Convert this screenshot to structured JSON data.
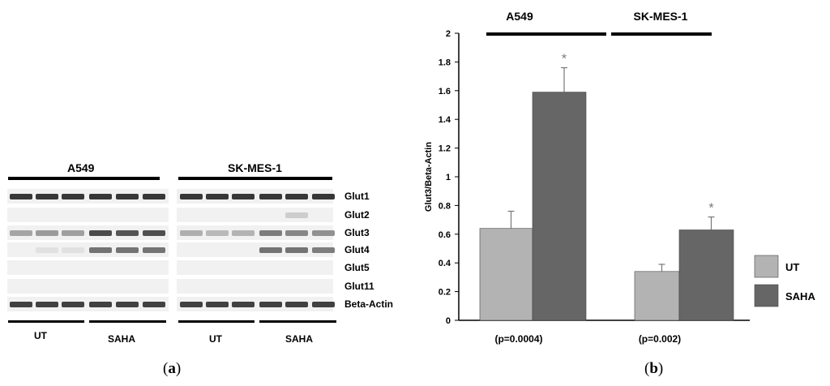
{
  "panel_a": {
    "caption": {
      "open": "(",
      "letter": "a",
      "close": ")"
    },
    "cell_lines": [
      "A549",
      "SK-MES-1"
    ],
    "genes": [
      "Glut1",
      "Glut2",
      "Glut3",
      "Glut4",
      "Glut5",
      "Glut11",
      "Beta-Actin"
    ],
    "groups": [
      "UT",
      "SAHA",
      "UT",
      "SAHA"
    ],
    "band_intensity": {
      "Glut1": [
        0.9,
        0.9,
        0.9,
        0.9,
        0.9,
        0.9,
        0.9,
        0.9,
        0.9,
        0.9,
        0.9,
        0.9
      ],
      "Glut2": [
        0,
        0,
        0,
        0,
        0,
        0,
        0,
        0,
        0,
        0,
        0.15,
        0
      ],
      "Glut3": [
        0.35,
        0.4,
        0.38,
        0.8,
        0.75,
        0.78,
        0.3,
        0.25,
        0.28,
        0.55,
        0.5,
        0.45
      ],
      "Glut4": [
        0,
        0.05,
        0.05,
        0.6,
        0.6,
        0.6,
        0,
        0,
        0,
        0.6,
        0.6,
        0.55
      ],
      "Glut5": [
        0,
        0,
        0,
        0,
        0,
        0,
        0,
        0,
        0,
        0,
        0,
        0
      ],
      "Glut11": [
        0,
        0,
        0,
        0,
        0,
        0,
        0,
        0,
        0,
        0,
        0,
        0
      ],
      "Beta-Actin": [
        0.85,
        0.85,
        0.85,
        0.85,
        0.85,
        0.85,
        0.85,
        0.85,
        0.85,
        0.85,
        0.85,
        0.85
      ]
    }
  },
  "panel_b": {
    "caption": {
      "open": "(",
      "letter": "b",
      "close": ")"
    },
    "p_values": [
      "(p=0.0004)",
      "(p=0.002)"
    ],
    "significance_marker": "*"
  },
  "chart_data": {
    "type": "bar",
    "categories": [
      "A549",
      "SK-MES-1"
    ],
    "series": [
      {
        "name": "UT",
        "values": [
          0.64,
          0.34
        ],
        "errors": [
          0.12,
          0.05
        ],
        "color": "#b3b3b3"
      },
      {
        "name": "SAHA",
        "values": [
          1.59,
          0.63
        ],
        "errors": [
          0.17,
          0.09
        ],
        "color": "#666666"
      }
    ],
    "ylabel": "Glut3/Beta-Actin",
    "ylim": [
      0,
      2
    ],
    "yticks": [
      "0",
      "0.2",
      "0.4",
      "0.6",
      "0.8",
      "1",
      "1.2",
      "1.4",
      "1.6",
      "1.8",
      "2"
    ],
    "grid": false,
    "legend": "right"
  }
}
